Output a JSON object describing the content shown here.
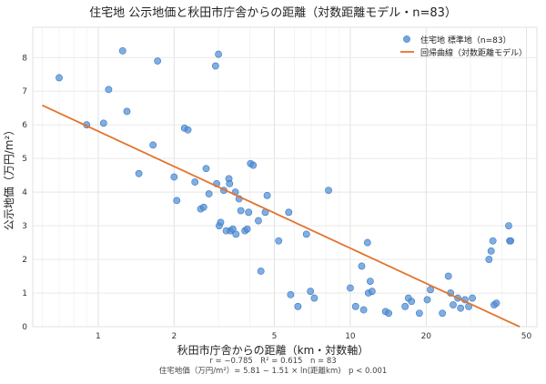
{
  "chart_data": {
    "type": "scatter",
    "title": "住宅地 公示地価と秋田市庁舎からの距離（対数距離モデル・n=83）",
    "xlabel": "秋田市庁舎からの距離（km・対数軸）",
    "ylabel": "公示地価（万円/m²）",
    "x_scale": "log",
    "xlim": [
      0.55,
      55
    ],
    "ylim": [
      0,
      8.9
    ],
    "x_ticks": [
      1,
      2,
      5,
      10,
      20,
      50
    ],
    "y_ticks": [
      0,
      1,
      2,
      3,
      4,
      5,
      6,
      7,
      8
    ],
    "grid": true,
    "legend": "top-right",
    "legend_labels": {
      "points": "住宅地 標準地（n=83）",
      "line": "回帰曲線（対数距離モデル）"
    },
    "colors": {
      "points": "#4f8fd6",
      "line": "#e3732c"
    },
    "stats_line": "r = −0.785　R² = 0.615　n = 83",
    "equation_line": "住宅地価（万円/m²）= 5.81 − 1.51 × ln(距離km)　p < 0.001",
    "regression": {
      "intercept": 5.81,
      "slope": -1.51,
      "x_range": [
        0.6,
        47
      ]
    },
    "series": [
      {
        "points": [
          [
            0.7,
            7.4
          ],
          [
            0.9,
            6.0
          ],
          [
            1.05,
            6.05
          ],
          [
            1.1,
            7.05
          ],
          [
            1.25,
            8.2
          ],
          [
            1.3,
            6.4
          ],
          [
            1.45,
            4.55
          ],
          [
            1.65,
            5.4
          ],
          [
            1.72,
            7.9
          ],
          [
            2.0,
            4.45
          ],
          [
            2.05,
            3.75
          ],
          [
            2.2,
            5.9
          ],
          [
            2.27,
            5.85
          ],
          [
            2.42,
            4.3
          ],
          [
            2.55,
            3.5
          ],
          [
            2.62,
            3.55
          ],
          [
            2.68,
            4.7
          ],
          [
            2.75,
            3.95
          ],
          [
            2.92,
            7.75
          ],
          [
            2.95,
            4.25
          ],
          [
            3.0,
            8.1
          ],
          [
            3.02,
            3.0
          ],
          [
            3.06,
            3.1
          ],
          [
            3.15,
            4.05
          ],
          [
            3.22,
            2.85
          ],
          [
            3.3,
            4.4
          ],
          [
            3.32,
            4.25
          ],
          [
            3.35,
            2.85
          ],
          [
            3.42,
            2.9
          ],
          [
            3.5,
            4.0
          ],
          [
            3.52,
            2.75
          ],
          [
            3.62,
            3.8
          ],
          [
            3.68,
            3.45
          ],
          [
            3.82,
            2.85
          ],
          [
            3.9,
            2.9
          ],
          [
            3.95,
            3.4
          ],
          [
            4.02,
            4.85
          ],
          [
            4.12,
            4.8
          ],
          [
            4.32,
            3.15
          ],
          [
            4.42,
            1.65
          ],
          [
            4.6,
            3.4
          ],
          [
            4.68,
            3.9
          ],
          [
            5.2,
            2.55
          ],
          [
            5.7,
            3.4
          ],
          [
            5.8,
            0.95
          ],
          [
            6.2,
            0.6
          ],
          [
            6.7,
            2.75
          ],
          [
            6.95,
            1.05
          ],
          [
            7.2,
            0.85
          ],
          [
            8.2,
            4.05
          ],
          [
            10.0,
            1.15
          ],
          [
            10.5,
            0.6
          ],
          [
            11.1,
            1.8
          ],
          [
            11.3,
            0.5
          ],
          [
            11.7,
            2.5
          ],
          [
            11.8,
            1.0
          ],
          [
            12.0,
            1.35
          ],
          [
            12.2,
            1.05
          ],
          [
            13.8,
            0.45
          ],
          [
            14.2,
            0.4
          ],
          [
            16.5,
            0.6
          ],
          [
            17.0,
            0.85
          ],
          [
            17.5,
            0.75
          ],
          [
            18.8,
            0.4
          ],
          [
            20.2,
            0.8
          ],
          [
            20.8,
            1.1
          ],
          [
            23.2,
            0.4
          ],
          [
            24.5,
            1.5
          ],
          [
            25.0,
            1.0
          ],
          [
            25.6,
            0.65
          ],
          [
            26.7,
            0.85
          ],
          [
            27.4,
            0.55
          ],
          [
            28.5,
            0.8
          ],
          [
            29.5,
            0.6
          ],
          [
            30.5,
            0.85
          ],
          [
            35.5,
            2.0
          ],
          [
            36.2,
            2.25
          ],
          [
            36.8,
            2.55
          ],
          [
            37.2,
            0.65
          ],
          [
            38.0,
            0.7
          ],
          [
            42.5,
            3.0
          ],
          [
            42.9,
            2.55
          ],
          [
            43.3,
            2.55
          ]
        ]
      }
    ]
  }
}
